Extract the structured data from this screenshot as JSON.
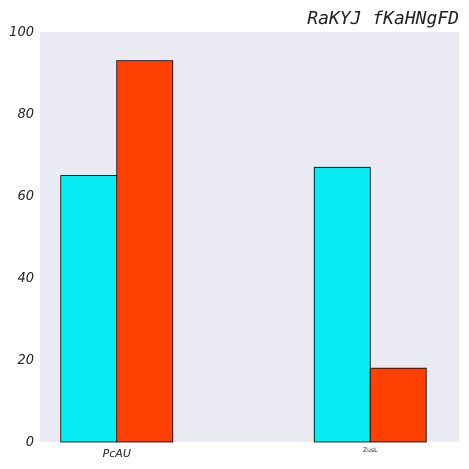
{
  "chart_data": {
    "type": "bar",
    "title": "RaKYJ fKaHNgFD",
    "xlabel": "",
    "ylabel": "",
    "categories": [
      "PcAU",
      "ZusL"
    ],
    "series": [
      {
        "values": [
          65,
          67
        ],
        "color": "#06ECF2"
      },
      {
        "values": [
          93,
          18
        ],
        "color": "#FF4000"
      }
    ],
    "ylim": [
      0,
      100
    ],
    "yticks": [
      0,
      20,
      40,
      60,
      80,
      100
    ],
    "grid": false,
    "background": "#EAEAF2"
  }
}
